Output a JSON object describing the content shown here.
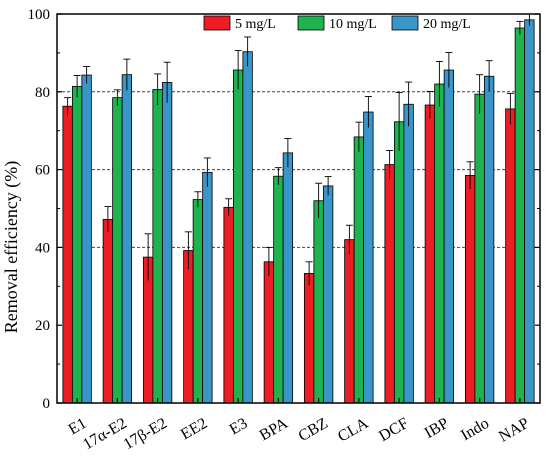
{
  "chart_data": {
    "type": "bar",
    "categories": [
      "E1",
      "17α-E2",
      "17β-E2",
      "EE2",
      "E3",
      "BPA",
      "CBZ",
      "CLA",
      "DCF",
      "IBP",
      "Indo",
      "NAP"
    ],
    "series": [
      {
        "name": "5 mg/L",
        "color": "#ee1c25",
        "values": [
          76.3,
          47.2,
          37.5,
          39.2,
          50.3,
          36.3,
          33.3,
          42.0,
          61.3,
          76.6,
          58.5,
          75.6
        ],
        "errors": [
          2.2,
          3.3,
          6.0,
          4.8,
          2.2,
          3.7,
          3.0,
          3.7,
          3.6,
          3.5,
          3.5,
          4.0
        ]
      },
      {
        "name": "10 mg/L",
        "color": "#1eb34e",
        "values": [
          81.4,
          78.5,
          80.6,
          52.3,
          85.6,
          58.3,
          52.0,
          68.4,
          72.3,
          82.0,
          79.4,
          96.4
        ],
        "errors": [
          2.8,
          2.0,
          4.0,
          2.0,
          5.0,
          2.2,
          4.5,
          3.8,
          7.5,
          5.8,
          5.0,
          1.7
        ]
      },
      {
        "name": "20 mg/L",
        "color": "#3a95c8",
        "values": [
          84.3,
          84.4,
          82.4,
          59.3,
          90.3,
          64.3,
          55.8,
          74.8,
          76.8,
          85.6,
          84.0,
          98.5
        ],
        "errors": [
          2.2,
          4.0,
          5.2,
          3.7,
          3.8,
          3.7,
          2.4,
          4.0,
          5.7,
          4.5,
          4.0,
          1.5
        ]
      }
    ],
    "ylabel": "Removal efficiency (%)",
    "xlabel": "",
    "ylim": [
      0,
      100
    ],
    "yticks": [
      0,
      20,
      40,
      60,
      80,
      100
    ],
    "gridlines": [
      40,
      60,
      80
    ],
    "legend_position": "top-center"
  }
}
